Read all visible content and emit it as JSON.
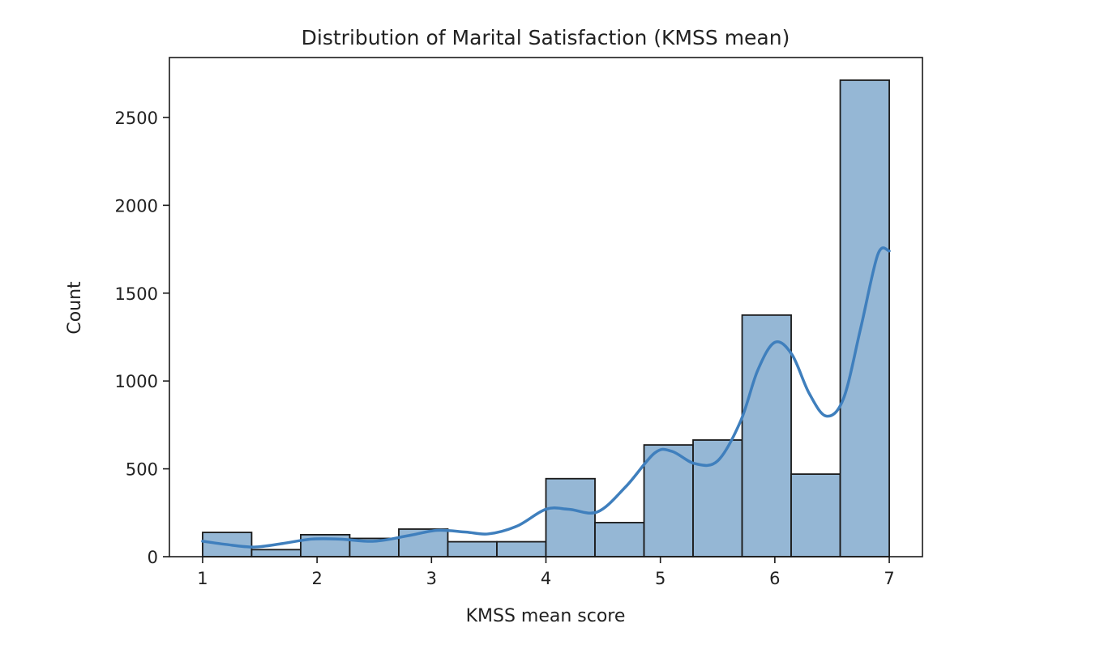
{
  "chart_data": {
    "type": "bar",
    "subtype": "histogram-with-kde",
    "title": "Distribution of Marital Satisfaction (KMSS mean)",
    "xlabel": "KMSS mean score",
    "ylabel": "Count",
    "xlim": [
      0.71,
      7.29
    ],
    "ylim": [
      0,
      2841
    ],
    "xticks": [
      1,
      2,
      3,
      4,
      5,
      6,
      7
    ],
    "yticks": [
      0,
      500,
      1000,
      1500,
      2000,
      2500
    ],
    "grid": false,
    "bin_range": [
      1,
      7
    ],
    "bins": 14,
    "values": [
      138,
      40,
      125,
      104,
      157,
      85,
      85,
      444,
      194,
      636,
      664,
      1375,
      470,
      2712
    ],
    "kde": {
      "x": [
        1.0,
        1.2,
        1.45,
        1.7,
        1.95,
        2.2,
        2.5,
        2.8,
        3.05,
        3.3,
        3.5,
        3.75,
        4.0,
        4.2,
        4.45,
        4.7,
        4.95,
        5.1,
        5.3,
        5.5,
        5.7,
        5.85,
        6.0,
        6.15,
        6.3,
        6.45,
        6.6,
        6.75,
        6.9,
        7.0
      ],
      "y": [
        88,
        70,
        55,
        75,
        100,
        100,
        88,
        120,
        150,
        140,
        130,
        175,
        270,
        270,
        255,
        400,
        590,
        600,
        530,
        545,
        770,
        1060,
        1220,
        1150,
        930,
        800,
        900,
        1300,
        1720,
        1740
      ]
    },
    "colors": {
      "bar_fill": "#95b7d5",
      "bar_edge": "#1a1a1a",
      "kde_line": "#3f7fbd"
    }
  }
}
